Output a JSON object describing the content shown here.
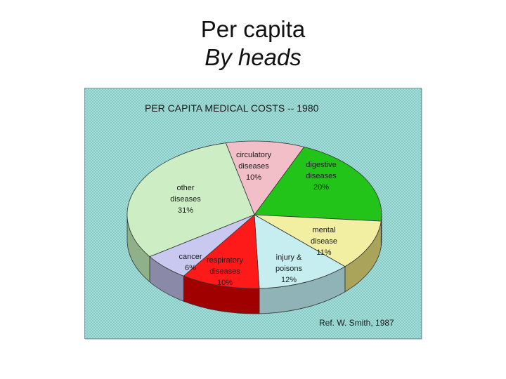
{
  "slide": {
    "title_line1": "Per capita",
    "title_line2": "By heads"
  },
  "chart_data": {
    "type": "pie",
    "title": "PER CAPITA MEDICAL COSTS -- 1980",
    "reference": "Ref. W. Smith, 1987",
    "slices": [
      {
        "label_lines": [
          "circulatory",
          "diseases",
          "10%"
        ],
        "value": 10,
        "color": "#f2bfc9",
        "side": "#a88a90"
      },
      {
        "label_lines": [
          "digestive",
          "diseases",
          "20%"
        ],
        "value": 20,
        "color": "#22c41a",
        "side": "#0f7d0c"
      },
      {
        "label_lines": [
          "mental",
          "disease",
          "11%"
        ],
        "value": 11,
        "color": "#f3efa2",
        "side": "#a9a45a"
      },
      {
        "label_lines": [
          "injury &",
          "poisons",
          "12%"
        ],
        "value": 12,
        "color": "#c6eef0",
        "side": "#8fb3b6"
      },
      {
        "label_lines": [
          "respiratory",
          "diseases",
          "10%"
        ],
        "value": 10,
        "color": "#ff1a1a",
        "side": "#a00000"
      },
      {
        "label_lines": [
          "cancer",
          "6%"
        ],
        "value": 6,
        "color": "#c8c8f0",
        "side": "#8a8aa8"
      },
      {
        "label_lines": [
          "other",
          "diseases",
          "31%"
        ],
        "value": 31,
        "color": "#cdeec5",
        "side": "#8fb088"
      }
    ],
    "background": {
      "fill": "#a9dcd8",
      "dots": "#69c3bb"
    }
  }
}
